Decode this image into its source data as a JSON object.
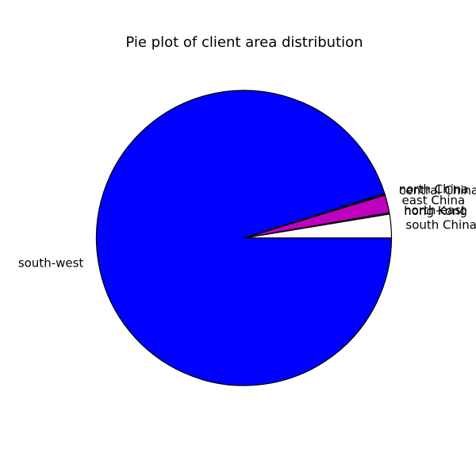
{
  "chart_data": {
    "type": "pie",
    "title": "Pie plot of client area distribution",
    "xlabel": "",
    "ylabel": "",
    "start_angle_deg": 0,
    "direction": "counterclockwise",
    "slices": [
      {
        "label": "south China",
        "value": 2.6,
        "color": "#ffffff"
      },
      {
        "label": "hong Kong",
        "value": 0.1,
        "color": "#00bf00"
      },
      {
        "label": "north-east",
        "value": 0.05,
        "color": "#ff0000"
      },
      {
        "label": "east China",
        "value": 1.95,
        "color": "#bf00bf"
      },
      {
        "label": "central China",
        "value": 0.1,
        "color": "#00bfbf"
      },
      {
        "label": "north China",
        "value": 0.1,
        "color": "#000000"
      },
      {
        "label": "south-west",
        "value": 95.1,
        "color": "#0000ff"
      }
    ]
  }
}
